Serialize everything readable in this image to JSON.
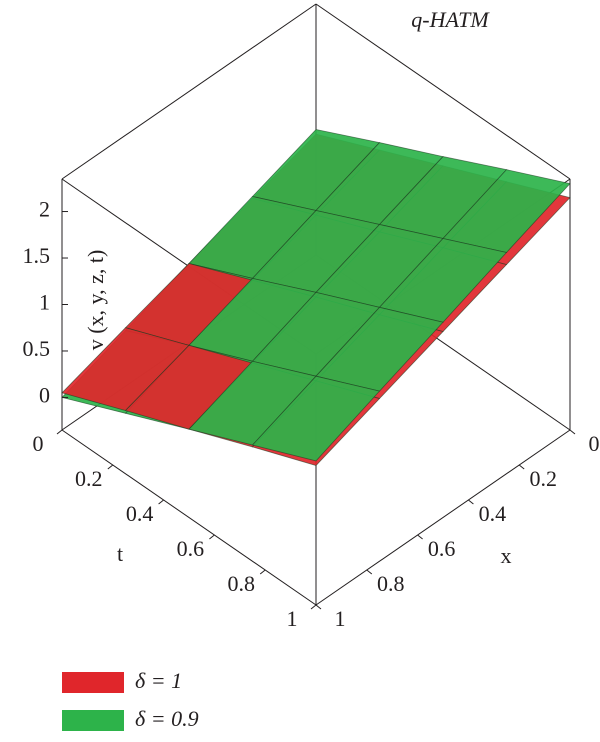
{
  "chart_data": {
    "type": "surface3d",
    "title": "q-HATM",
    "xlabel": "x",
    "tlabel": "t",
    "zlabel": "v (x, y, z, t)",
    "x": [
      0,
      0.25,
      0.5,
      0.75,
      1
    ],
    "t": [
      0,
      0.25,
      0.5,
      0.75,
      1
    ],
    "xlim": [
      0,
      1
    ],
    "tlim": [
      0,
      1
    ],
    "zlim": [
      -0.35,
      2.35
    ],
    "xticks": [
      0,
      0.2,
      0.4,
      0.6,
      0.8,
      1
    ],
    "tticks": [
      0,
      0.2,
      0.4,
      0.6,
      0.8,
      1
    ],
    "zticks": [
      0,
      0.5,
      1,
      1.5,
      2
    ],
    "series": [
      {
        "name": "δ = 1",
        "color": "#e0262b",
        "values": [
          [
            0.95,
            0.73,
            0.5,
            0.28,
            0.05
          ],
          [
            1.25,
            1.02,
            0.79,
            0.56,
            0.33
          ],
          [
            1.55,
            1.31,
            1.08,
            0.84,
            0.6
          ],
          [
            1.85,
            1.61,
            1.36,
            1.12,
            0.88
          ],
          [
            2.15,
            1.9,
            1.65,
            1.4,
            1.15
          ]
        ]
      },
      {
        "name": "δ = 0.9",
        "color": "#2db34a",
        "values": [
          [
            1.0,
            0.75,
            0.5,
            0.25,
            0
          ],
          [
            1.33,
            1.07,
            0.81,
            0.56,
            0.3
          ],
          [
            1.65,
            1.39,
            1.13,
            0.86,
            0.6
          ],
          [
            1.98,
            1.71,
            1.44,
            1.17,
            0.9
          ],
          [
            2.3,
            2.03,
            1.75,
            1.48,
            1.2
          ]
        ]
      }
    ]
  }
}
